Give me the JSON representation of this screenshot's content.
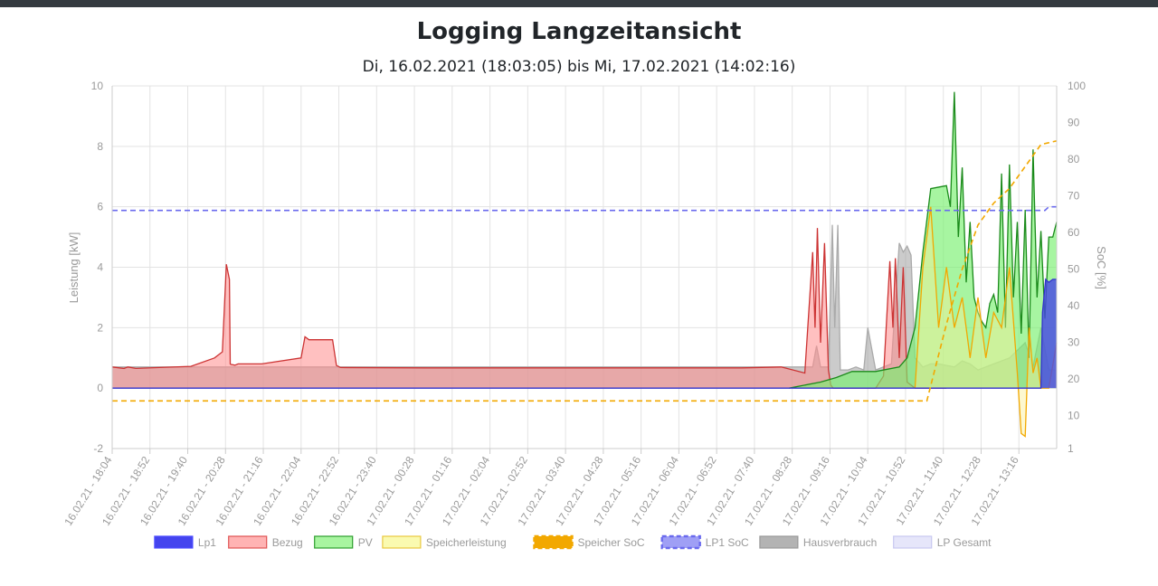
{
  "header": {
    "title": "Logging Langzeitansicht",
    "subtitle": "Di, 16.02.2021 (18:03:05) bis Mi, 17.02.2021 (14:02:16)"
  },
  "chart_data": {
    "type": "line",
    "title": "Logging Langzeitansicht",
    "subtitle": "Di, 16.02.2021 (18:03:05) bis Mi, 17.02.2021 (14:02:16)",
    "ylabel": "Leistung [kW]",
    "y2label": "SoC [%]",
    "ylim": [
      -2,
      10
    ],
    "y2lim": [
      1,
      100
    ],
    "yticks": [
      "-2",
      "0",
      "2",
      "4",
      "6",
      "8",
      "10"
    ],
    "y2ticks": [
      "1",
      "10",
      "20",
      "30",
      "40",
      "50",
      "60",
      "70",
      "80",
      "90",
      "100"
    ],
    "categories": [
      "16.02.21 - 18:04",
      "16.02.21 - 18:52",
      "16.02.21 - 19:40",
      "16.02.21 - 20:28",
      "16.02.21 - 21:16",
      "16.02.21 - 22:04",
      "16.02.21 - 22:52",
      "16.02.21 - 23:40",
      "17.02.21 - 00:28",
      "17.02.21 - 01:16",
      "17.02.21 - 02:04",
      "17.02.21 - 02:52",
      "17.02.21 - 03:40",
      "17.02.21 - 04:28",
      "17.02.21 - 05:16",
      "17.02.21 - 06:04",
      "17.02.21 - 06:52",
      "17.02.21 - 07:40",
      "17.02.21 - 08:28",
      "17.02.21 - 09:16",
      "17.02.21 - 10:04",
      "17.02.21 - 10:52",
      "17.02.21 - 11:40",
      "17.02.21 - 12:28",
      "17.02.21 - 13:16"
    ],
    "grid": true,
    "legend_position": "bottom",
    "legend": [
      {
        "label": "Lp1",
        "color": "#4a4aff",
        "fill": "#4444ee",
        "dash": false
      },
      {
        "label": "Bezug",
        "color": "#e05555",
        "fill": "#ffb3b3",
        "dash": false
      },
      {
        "label": "PV",
        "color": "#2e9e2e",
        "fill": "#a8f5a0",
        "dash": false
      },
      {
        "label": "Speicherleistung",
        "color": "#e8c840",
        "fill": "#fafab0",
        "dash": false
      },
      {
        "label": "Speicher SoC",
        "color": "#f2a800",
        "fill": "#f2a800",
        "dash": true
      },
      {
        "label": "LP1 SoC",
        "color": "#6a6aee",
        "fill": "#9f9ff5",
        "dash": true
      },
      {
        "label": "Hausverbrauch",
        "color": "#999999",
        "fill": "#b3b3b3",
        "dash": false
      },
      {
        "label": "LP Gesamt",
        "color": "#c8c8f0",
        "fill": "#e6e6fa",
        "dash": false
      }
    ],
    "x_range": [
      0,
      1200
    ],
    "series": [
      {
        "name": "Bezug",
        "axis": "left",
        "color": "#cc3333",
        "fill": "rgba(255,140,140,0.55)",
        "x": [
          0,
          15,
          20,
          30,
          60,
          100,
          130,
          140,
          145,
          149,
          150,
          151,
          152,
          156,
          160,
          190,
          240,
          245,
          250,
          280,
          285,
          290,
          400,
          500,
          600,
          700,
          800,
          850,
          880,
          890,
          893,
          896,
          900,
          905,
          910,
          913,
          916,
          920,
          925,
          930,
          945,
          960,
          970,
          980,
          988,
          992,
          995,
          1000,
          1005,
          1010,
          1020,
          1030,
          1040,
          1060
        ],
        "y": [
          0.7,
          0.65,
          0.7,
          0.65,
          0.68,
          0.72,
          1.0,
          1.2,
          4.1,
          3.6,
          0.8,
          0.78,
          0.78,
          0.76,
          0.8,
          0.8,
          1.0,
          1.7,
          1.6,
          1.6,
          0.75,
          0.68,
          0.67,
          0.67,
          0.67,
          0.67,
          0.67,
          0.7,
          0.5,
          4.5,
          2.0,
          5.3,
          1.5,
          4.8,
          0.6,
          0.1,
          0.0,
          0.0,
          0.0,
          0.0,
          0.0,
          0.0,
          0.0,
          0.4,
          4.2,
          2.0,
          4.3,
          1.0,
          4.0,
          0.2,
          0.0,
          0.0,
          0.0,
          0.0
        ]
      },
      {
        "name": "PV",
        "axis": "left",
        "color": "#1a8a1a",
        "fill": "rgba(120,240,110,0.65)",
        "x": [
          860,
          900,
          920,
          940,
          970,
          1000,
          1010,
          1020,
          1030,
          1040,
          1060,
          1065,
          1070,
          1075,
          1080,
          1085,
          1090,
          1095,
          1100,
          1105,
          1110,
          1115,
          1120,
          1125,
          1130,
          1135,
          1140,
          1145,
          1150,
          1155,
          1160,
          1165,
          1170,
          1175,
          1180,
          1185,
          1190,
          1195,
          1200
        ],
        "y": [
          0.0,
          0.2,
          0.35,
          0.55,
          0.55,
          0.7,
          1.0,
          2.0,
          4.5,
          6.6,
          6.7,
          6.0,
          9.8,
          5.0,
          7.3,
          3.5,
          5.5,
          3.0,
          2.5,
          2.2,
          2.0,
          2.8,
          3.1,
          2.5,
          7.1,
          2.0,
          7.4,
          3.0,
          5.5,
          1.8,
          5.9,
          1.0,
          7.9,
          3.0,
          5.2,
          2.3,
          5.0,
          5.0,
          5.5
        ]
      },
      {
        "name": "Hausverbrauch",
        "axis": "left",
        "color": "#aaaaaa",
        "fill": "rgba(160,160,160,0.55)",
        "x": [
          0,
          890,
          895,
          900,
          910,
          915,
          918,
          922,
          925,
          935,
          945,
          955,
          960,
          970,
          990,
          1000,
          1005,
          1010,
          1015,
          1020,
          1030,
          1040,
          1050,
          1070,
          1080,
          1090,
          1100,
          1120,
          1140,
          1160,
          1170,
          1180,
          1190,
          1200
        ],
        "y": [
          0.7,
          0.7,
          1.4,
          0.7,
          0.7,
          5.4,
          2.0,
          5.4,
          0.6,
          0.6,
          0.7,
          0.6,
          2.0,
          0.6,
          0.8,
          4.8,
          4.5,
          4.7,
          4.4,
          1.0,
          0.7,
          0.8,
          0.8,
          0.7,
          0.9,
          0.8,
          0.6,
          0.8,
          1.0,
          1.5,
          0.7,
          2.0,
          0.6,
          0.6
        ]
      },
      {
        "name": "Speicherleistung",
        "axis": "left",
        "color": "#f2a800",
        "fill": "rgba(250,240,150,0.45)",
        "x": [
          1020,
          1030,
          1040,
          1050,
          1060,
          1070,
          1080,
          1090,
          1100,
          1110,
          1120,
          1130,
          1140,
          1150,
          1155,
          1160,
          1165,
          1170,
          1175,
          1180,
          1190,
          1200
        ],
        "y": [
          0.0,
          4.0,
          6.0,
          2.0,
          4.0,
          2.0,
          3.0,
          1.0,
          3.0,
          1.0,
          2.5,
          2.0,
          4.0,
          0.5,
          -1.5,
          -1.6,
          2.0,
          0.5,
          1.0,
          0.0,
          0.0,
          1.5
        ]
      },
      {
        "name": "Lp1",
        "axis": "left",
        "color": "#3333cc",
        "fill": "rgba(70,70,230,0.8)",
        "x": [
          0,
          1180,
          1182,
          1186,
          1190,
          1195,
          1200
        ],
        "y": [
          0.0,
          0.0,
          2.5,
          3.6,
          3.5,
          3.6,
          3.6
        ]
      },
      {
        "name": "Speicher SoC",
        "axis": "right",
        "color": "#f2a800",
        "dash": true,
        "x": [
          0,
          1035,
          1060,
          1080,
          1100,
          1120,
          1140,
          1160,
          1180,
          1200
        ],
        "y": [
          14,
          14,
          35,
          50,
          62,
          68,
          72,
          78,
          84,
          85
        ]
      },
      {
        "name": "LP1 SoC",
        "axis": "right",
        "color": "#6a6aee",
        "dash": true,
        "x": [
          0,
          1185,
          1190,
          1200
        ],
        "y": [
          66,
          66,
          67,
          67
        ]
      }
    ]
  }
}
